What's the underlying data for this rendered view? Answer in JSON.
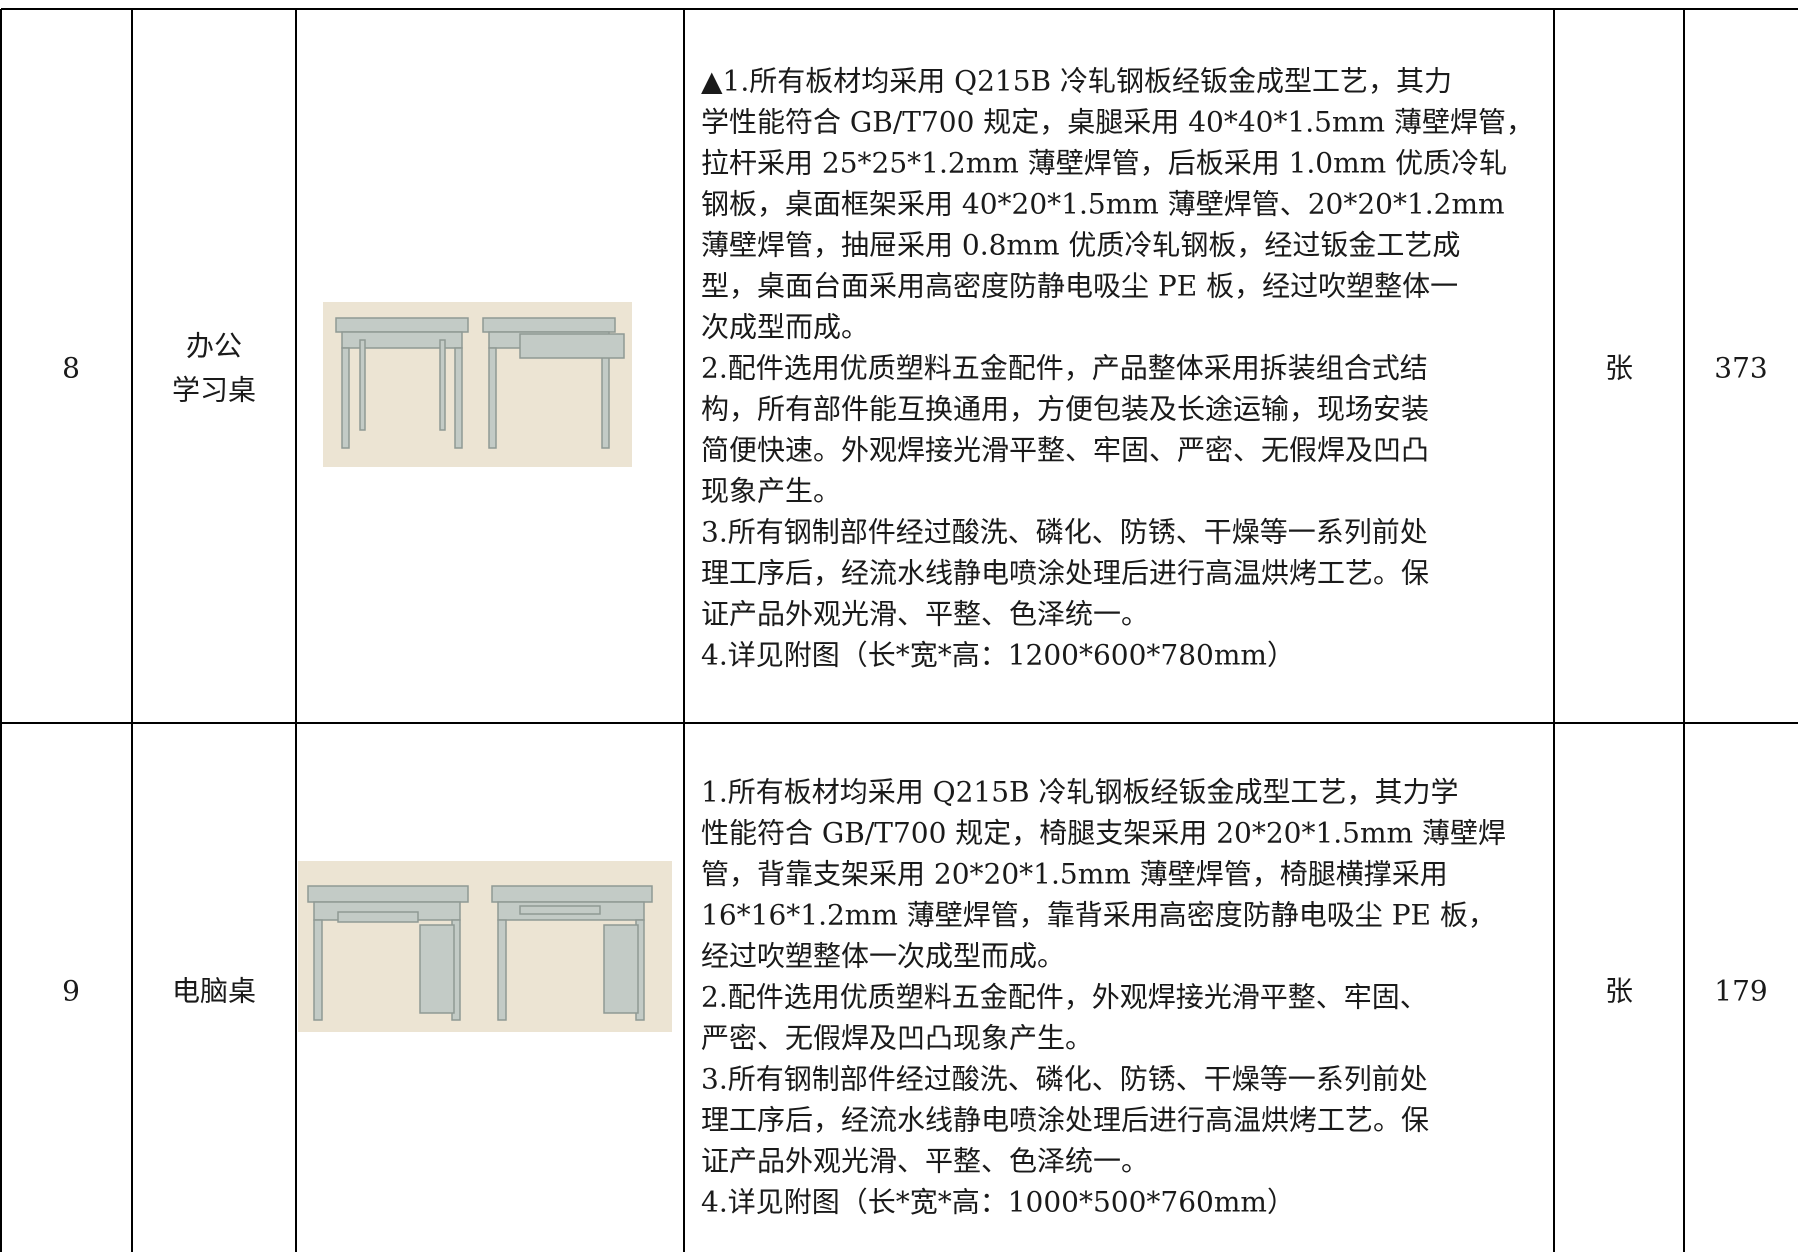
{
  "table": {
    "rows": [
      {
        "no": 8,
        "name": [
          "办公",
          "学习桌"
        ],
        "description": [
          "▲1.所有板材均采用 Q215B 冷轧钢板经钣金成型工艺，其力",
          "学性能符合 GB/T700 规定，桌腿采用 40*40*1.5mm 薄壁焊管，",
          "拉杆采用 25*25*1.2mm 薄壁焊管，后板采用 1.0mm 优质冷轧",
          "钢板，桌面框架采用 40*20*1.5mm 薄壁焊管、20*20*1.2mm",
          "薄壁焊管，抽屉采用 0.8mm 优质冷轧钢板，经过钣金工艺成",
          "型，桌面台面采用高密度防静电吸尘 PE 板，经过吹塑整体一",
          "次成型而成。",
          "2.配件选用优质塑料五金配件，产品整体采用拆装组合式结",
          "构，所有部件能互换通用，方便包装及长途运输，现场安装",
          "简便快速。外观焊接光滑平整、牢固、严密、无假焊及凹凸",
          "现象产生。",
          "3.所有钢制部件经过酸洗、磷化、防锈、干燥等一系列前处",
          "理工序后，经流水线静电喷涂处理后进行高温烘烤工艺。保",
          "证产品外观光滑、平整、色泽统一。",
          "4.详见附图（长*宽*高：1200*600*780mm）"
        ],
        "unit": "张",
        "quantity": 373
      },
      {
        "no": 9,
        "name": [
          "电脑桌"
        ],
        "description": [
          "1.所有板材均采用 Q215B 冷轧钢板经钣金成型工艺，其力学",
          "性能符合 GB/T700 规定，椅腿支架采用 20*20*1.5mm 薄壁焊",
          "管，背靠支架采用 20*20*1.5mm 薄壁焊管，椅腿横撑采用",
          "16*16*1.2mm 薄壁焊管，靠背采用高密度防静电吸尘 PE 板，",
          "经过吹塑整体一次成型而成。",
          "2.配件选用优质塑料五金配件，外观焊接光滑平整、牢固、",
          "严密、无假焊及凹凸现象产生。",
          "3.所有钢制部件经过酸洗、磷化、防锈、干燥等一系列前处",
          "理工序后，经流水线静电喷涂处理后进行高温烘烤工艺。保",
          "证产品外观光滑、平整、色泽统一。",
          "4.详见附图（长*宽*高：1000*500*760mm）"
        ],
        "unit": "张",
        "quantity": 179
      }
    ]
  }
}
